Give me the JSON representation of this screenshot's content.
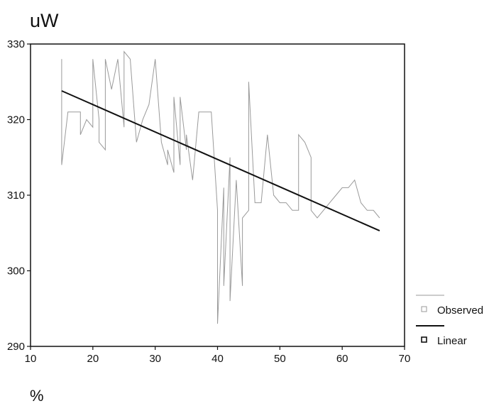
{
  "chart_data": {
    "type": "line",
    "title": "",
    "ylabel": "uW",
    "xlabel": "%",
    "xlim": [
      10,
      70
    ],
    "ylim": [
      290,
      330
    ],
    "xticks": [
      "10",
      "20",
      "30",
      "40",
      "50",
      "60",
      "70"
    ],
    "yticks": [
      "290",
      "300",
      "310",
      "320",
      "330"
    ],
    "grid": false,
    "legend_position": "right",
    "series": [
      {
        "name": "Observed",
        "style": "thin-grey",
        "color": "#9a9a9a",
        "x": [
          15,
          15,
          15,
          16,
          17,
          18,
          18,
          19,
          20,
          20,
          21,
          21,
          22,
          22,
          23,
          24,
          25,
          25,
          26,
          27,
          28,
          29,
          30,
          31,
          32,
          32,
          33,
          33,
          34,
          34,
          35,
          35,
          36,
          37,
          38,
          39,
          40,
          40,
          41,
          41,
          42,
          42,
          43,
          44,
          44,
          45,
          45,
          46,
          47,
          48,
          49,
          50,
          51,
          52,
          53,
          53,
          54,
          55,
          55,
          56,
          57,
          58,
          59,
          60,
          61,
          62,
          63,
          63,
          64,
          65,
          66
        ],
        "y": [
          323,
          328,
          314,
          321,
          321,
          321,
          318,
          320,
          319,
          328,
          320,
          317,
          316,
          328,
          324,
          328,
          319,
          329,
          328,
          317,
          320,
          322,
          328,
          317,
          314,
          316,
          313,
          323,
          314,
          323,
          316,
          318,
          312,
          321,
          321,
          321,
          308,
          293,
          311,
          298,
          315,
          296,
          312,
          298,
          307,
          308,
          325,
          309,
          309,
          318,
          310,
          309,
          309,
          308,
          308,
          318,
          317,
          315,
          308,
          307,
          308,
          309,
          310,
          311,
          311,
          312,
          309,
          309,
          308,
          308,
          307
        ]
      },
      {
        "name": "Linear",
        "style": "thick-black",
        "color": "#111111",
        "x": [
          15,
          66
        ],
        "y": [
          323.8,
          305.3
        ]
      }
    ]
  }
}
